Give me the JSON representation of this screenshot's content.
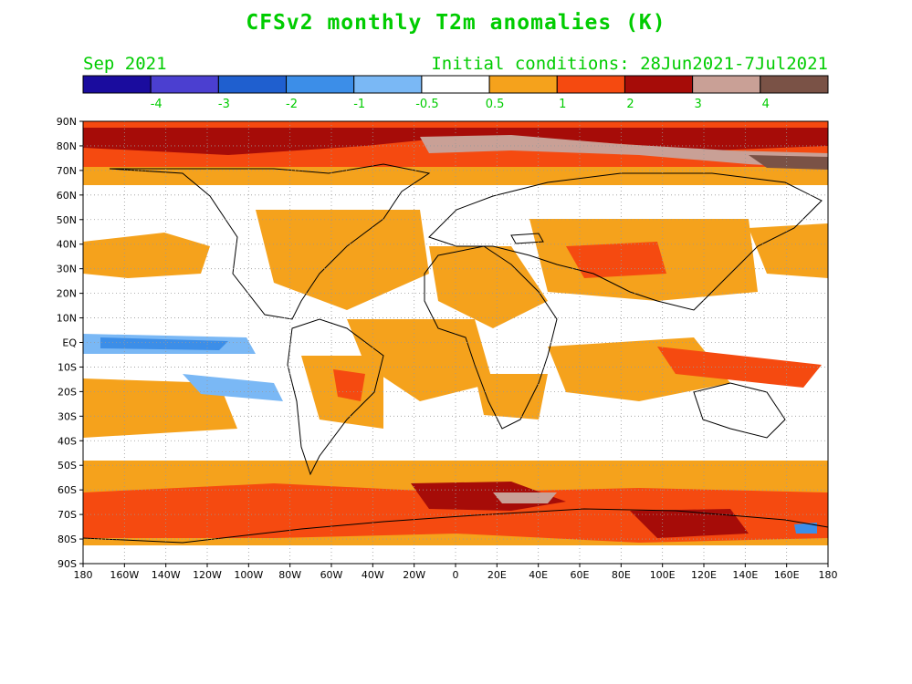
{
  "title": "CFSv2 monthly T2m anomalies (K)",
  "valid_month": "Sep 2021",
  "initial_conditions": "Initial conditions: 28Jun2021-7Jul2021",
  "colorbar": {
    "colors": [
      "#1a0c9e",
      "#4b3fd0",
      "#1f5fcf",
      "#3c8ee8",
      "#7ab8f5",
      "#ffffff",
      "#f5a21c",
      "#f54a10",
      "#a60c08",
      "#c9a096",
      "#7a5246"
    ],
    "labels": [
      "-4",
      "-3",
      "-2",
      "-1",
      "-0.5",
      "0.5",
      "1",
      "2",
      "3",
      "4"
    ]
  },
  "axes": {
    "lat_labels": [
      "90N",
      "80N",
      "70N",
      "60N",
      "50N",
      "40N",
      "30N",
      "20N",
      "10N",
      "EQ",
      "10S",
      "20S",
      "30S",
      "40S",
      "50S",
      "60S",
      "70S",
      "80S",
      "90S"
    ],
    "lon_labels": [
      "180",
      "160W",
      "140W",
      "120W",
      "100W",
      "80W",
      "60W",
      "40W",
      "20W",
      "0",
      "20E",
      "40E",
      "60E",
      "80E",
      "100E",
      "120E",
      "140E",
      "160E",
      "180"
    ]
  },
  "colors": {
    "text": "#00cc00",
    "frame": "#000000",
    "grid": "#999999"
  }
}
